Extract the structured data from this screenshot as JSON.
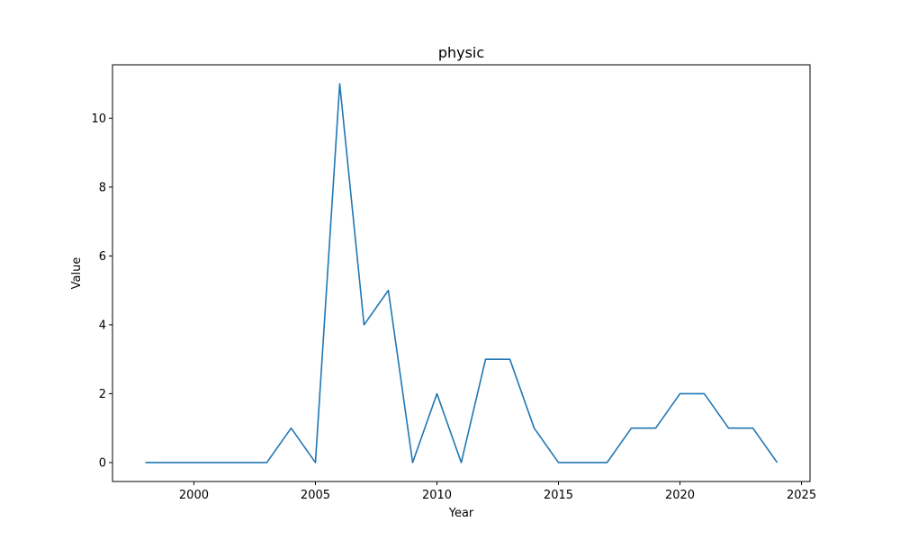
{
  "chart_data": {
    "type": "line",
    "title": "physic",
    "xlabel": "Year",
    "ylabel": "Value",
    "xlim": [
      1996.65,
      2025.35
    ],
    "ylim": [
      -0.55,
      11.55
    ],
    "xticks": [
      2000,
      2005,
      2010,
      2015,
      2020,
      2025
    ],
    "yticks": [
      0,
      2,
      4,
      6,
      8,
      10
    ],
    "grid": false,
    "legend": "none",
    "line_color": "#1f77b4",
    "series": [
      {
        "x": [
          1998,
          1999,
          2000,
          2001,
          2002,
          2003,
          2004,
          2005,
          2006,
          2007,
          2008,
          2009,
          2010,
          2011,
          2012,
          2013,
          2014,
          2015,
          2016,
          2017,
          2018,
          2019,
          2020,
          2021,
          2022,
          2023,
          2024
        ],
        "values": [
          0,
          0,
          0,
          0,
          0,
          0,
          1,
          0,
          11,
          4,
          5,
          0,
          2,
          0,
          3,
          3,
          1,
          0,
          0,
          0,
          1,
          1,
          2,
          2,
          1,
          1,
          0
        ]
      }
    ]
  }
}
